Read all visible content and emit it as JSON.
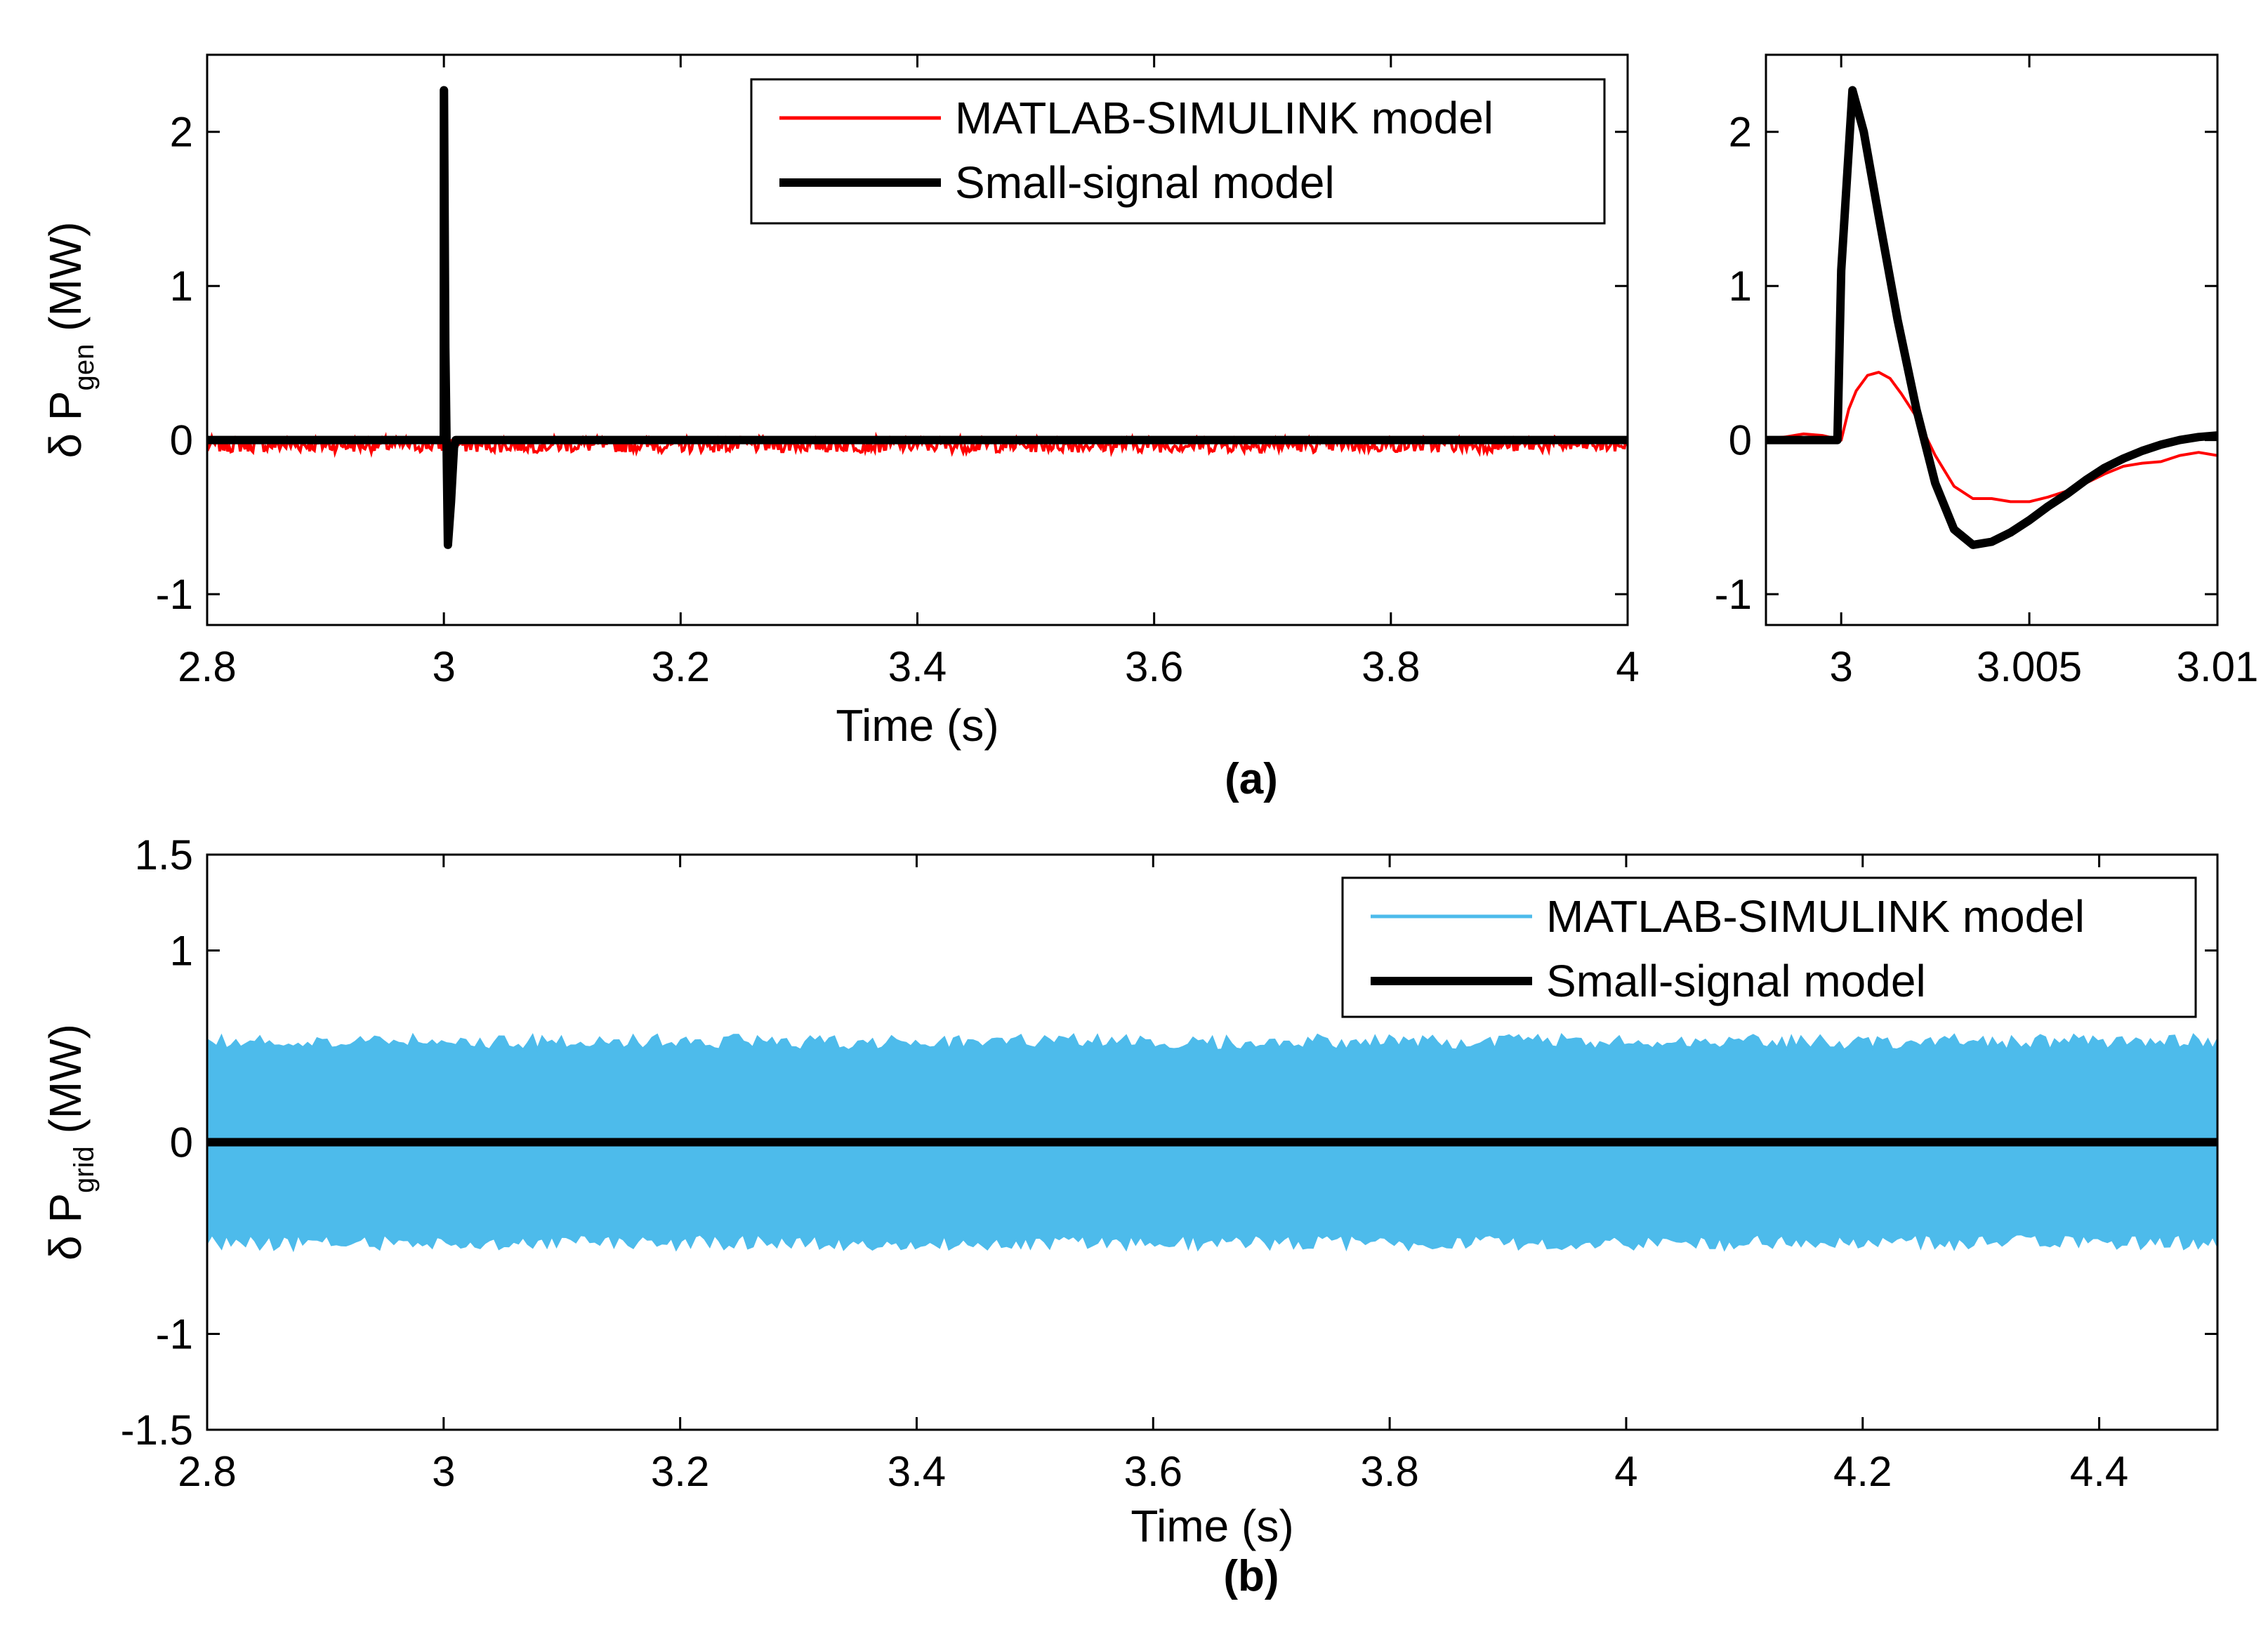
{
  "chart_data": [
    {
      "id": "a-main",
      "type": "line",
      "panel": "(a)",
      "title": "",
      "xlabel": "Time (s)",
      "ylabel": {
        "prefix": "δ P",
        "sub": "gen",
        "suffix": " (MW)"
      },
      "xlim": [
        2.8,
        4.0
      ],
      "ylim": [
        -1.2,
        2.5
      ],
      "xticks": [
        "2.8",
        "3",
        "3.2",
        "3.4",
        "3.6",
        "3.8",
        "4"
      ],
      "xtick_values": [
        2.8,
        3.0,
        3.2,
        3.4,
        3.6,
        3.8,
        4.0
      ],
      "yticks": [
        "-1",
        "0",
        "1",
        "2"
      ],
      "ytick_values": [
        -1,
        0,
        1,
        2
      ],
      "legend_position": "top-right",
      "series": [
        {
          "name": "MATLAB-SIMULINK model",
          "color": "#ff0000",
          "style": "thin",
          "kind": "noise",
          "mean": -0.03,
          "amplitude": 0.05,
          "t_start": 2.8,
          "t_end": 4.0
        },
        {
          "name": "Small-signal model",
          "color": "#000000",
          "style": "thick",
          "x": [
            2.8,
            2.9999,
            3.0,
            3.0001,
            3.0012,
            3.0034,
            3.006,
            3.0085,
            3.01,
            3.02,
            4.0
          ],
          "y": [
            0,
            0,
            2.27,
            2.27,
            0.6,
            -0.68,
            -0.4,
            -0.05,
            0.0,
            0.0,
            0.0
          ]
        }
      ]
    },
    {
      "id": "a-zoom",
      "type": "line",
      "panel": "(a)",
      "title": "",
      "xlabel": "",
      "ylabel": "",
      "xlim": [
        2.998,
        3.01
      ],
      "ylim": [
        -1.2,
        2.5
      ],
      "xticks": [
        "3",
        "3.005",
        "3.01"
      ],
      "xtick_values": [
        3.0,
        3.005,
        3.01
      ],
      "yticks": [
        "-1",
        "0",
        "1",
        "2"
      ],
      "ytick_values": [
        -1,
        0,
        1,
        2
      ],
      "series": [
        {
          "name": "MATLAB-SIMULINK model",
          "color": "#ff0000",
          "style": "thin",
          "x": [
            2.998,
            2.9985,
            2.999,
            2.9995,
            3.0,
            3.0002,
            3.0004,
            3.0007,
            3.001,
            3.0013,
            3.0016,
            3.002,
            3.0025,
            3.003,
            3.0035,
            3.004,
            3.0045,
            3.005,
            3.0055,
            3.006,
            3.0065,
            3.007,
            3.0075,
            3.008,
            3.0085,
            3.009,
            3.0095,
            3.01
          ],
          "y": [
            0.01,
            0.02,
            0.04,
            0.03,
            0.0,
            0.2,
            0.32,
            0.42,
            0.44,
            0.4,
            0.3,
            0.15,
            -0.1,
            -0.3,
            -0.38,
            -0.38,
            -0.4,
            -0.4,
            -0.37,
            -0.33,
            -0.28,
            -0.22,
            -0.17,
            -0.15,
            -0.14,
            -0.1,
            -0.08,
            -0.1
          ]
        },
        {
          "name": "Small-signal model",
          "color": "#000000",
          "style": "thick",
          "x": [
            2.998,
            2.9999,
            3.0,
            3.0003,
            3.0006,
            3.001,
            3.0015,
            3.002,
            3.0025,
            3.003,
            3.0035,
            3.004,
            3.0045,
            3.005,
            3.0055,
            3.006,
            3.0065,
            3.007,
            3.0075,
            3.008,
            3.0085,
            3.009,
            3.0095,
            3.01
          ],
          "y": [
            0.0,
            0.0,
            1.1,
            2.27,
            2.0,
            1.45,
            0.78,
            0.2,
            -0.28,
            -0.58,
            -0.68,
            -0.66,
            -0.6,
            -0.52,
            -0.43,
            -0.35,
            -0.26,
            -0.18,
            -0.12,
            -0.07,
            -0.03,
            0.0,
            0.02,
            0.03
          ]
        }
      ]
    },
    {
      "id": "b",
      "type": "line",
      "panel": "(b)",
      "title": "",
      "xlabel": "Time (s)",
      "ylabel": {
        "prefix": "δ P",
        "sub": "grid",
        "suffix": " (MW)"
      },
      "xlim": [
        2.8,
        4.5
      ],
      "ylim": [
        -1.5,
        1.5
      ],
      "xticks": [
        "2.8",
        "3",
        "3.2",
        "3.4",
        "3.6",
        "3.8",
        "4",
        "4.2",
        "4.4"
      ],
      "xtick_values": [
        2.8,
        3.0,
        3.2,
        3.4,
        3.6,
        3.8,
        4.0,
        4.2,
        4.4
      ],
      "yticks": [
        "-1.5",
        "-1",
        "0",
        "1",
        "1.5"
      ],
      "ytick_values": [
        -1.5,
        -1,
        0,
        1,
        1.5
      ],
      "legend_position": "top-right",
      "series": [
        {
          "name": "MATLAB-SIMULINK model",
          "color": "#4dbbeb",
          "style": "thin",
          "kind": "band",
          "upper": 0.52,
          "lower": -0.52,
          "spread": 0.04,
          "t_start": 2.8,
          "t_end": 4.5
        },
        {
          "name": "Small-signal model",
          "color": "#000000",
          "style": "thick",
          "x": [
            2.8,
            4.5
          ],
          "y": [
            0.0,
            0.0
          ]
        }
      ]
    }
  ],
  "captions": {
    "a": "(a)",
    "b": "(b)"
  }
}
